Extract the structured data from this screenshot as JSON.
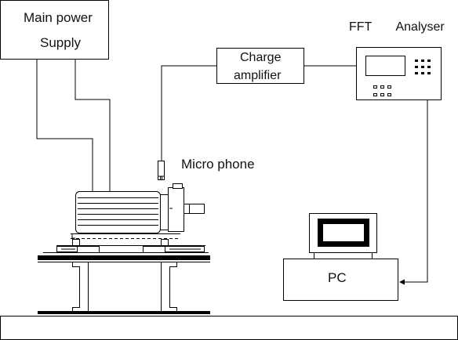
{
  "labels": {
    "power_supply_line1": "Main power",
    "power_supply_line2": "Supply",
    "charge_amp_line1": "Charge",
    "charge_amp_line2": "amplifier",
    "fft_analyser": "FFT   Analyser",
    "microphone": "Micro phone",
    "pc": "PC"
  },
  "colors": {
    "stroke": "#000000",
    "fill": "#ffffff",
    "background": "#ffffff"
  }
}
